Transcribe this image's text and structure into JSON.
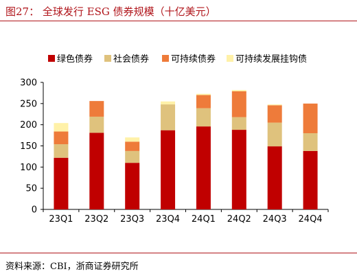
{
  "figure": {
    "title": "图27：  全球发行 ESG 债券规模（十亿美元）",
    "source": "资料来源：CBI，浙商证券研究所"
  },
  "chart_data": {
    "type": "bar",
    "stacked": true,
    "categories": [
      "23Q1",
      "23Q2",
      "23Q3",
      "23Q4",
      "24Q1",
      "24Q2",
      "24Q3",
      "24Q4"
    ],
    "series": [
      {
        "name": "绿色债券",
        "color": "#c00000",
        "values": [
          122,
          181,
          110,
          187,
          196,
          188,
          149,
          138
        ]
      },
      {
        "name": "社会债券",
        "color": "#dfc27d",
        "values": [
          32,
          38,
          28,
          61,
          43,
          30,
          56,
          42
        ]
      },
      {
        "name": "可持续债券",
        "color": "#ee7b3a",
        "values": [
          30,
          37,
          22,
          0,
          31,
          61,
          41,
          70
        ]
      },
      {
        "name": "可持续发展挂钩债",
        "color": "#fff1a8",
        "values": [
          20,
          0,
          10,
          7,
          3,
          3,
          2,
          0
        ]
      }
    ],
    "yticks": [
      0,
      50,
      100,
      150,
      200,
      250,
      300
    ],
    "ylim": [
      0,
      300
    ],
    "xlabel": "",
    "ylabel": "",
    "grid": false,
    "legend_position": "top"
  }
}
